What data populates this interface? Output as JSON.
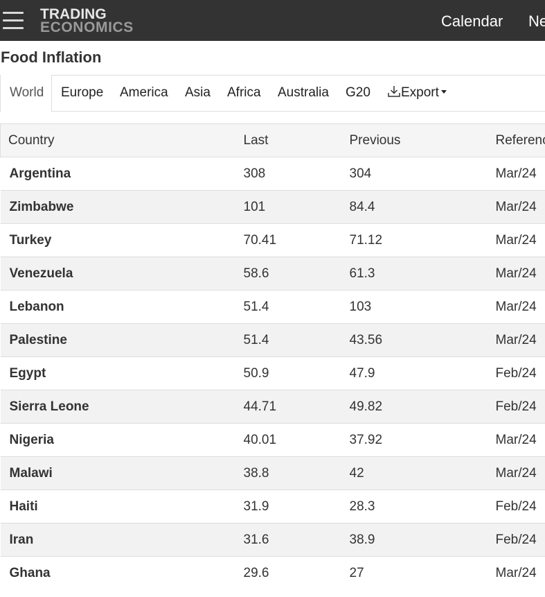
{
  "header": {
    "logo_line1": "TRADING",
    "logo_line2": "ECONOMICS",
    "nav": [
      "Calendar",
      "Ne"
    ]
  },
  "page_title": "Food Inflation",
  "tabs": [
    "World",
    "Europe",
    "America",
    "Asia",
    "Africa",
    "Australia",
    "G20"
  ],
  "active_tab": "World",
  "export_label": "Export",
  "table": {
    "columns": [
      "Country",
      "Last",
      "Previous",
      "Referenc"
    ],
    "rows": [
      [
        "Argentina",
        "308",
        "304",
        "Mar/24"
      ],
      [
        "Zimbabwe",
        "101",
        "84.4",
        "Mar/24"
      ],
      [
        "Turkey",
        "70.41",
        "71.12",
        "Mar/24"
      ],
      [
        "Venezuela",
        "58.6",
        "61.3",
        "Mar/24"
      ],
      [
        "Lebanon",
        "51.4",
        "103",
        "Mar/24"
      ],
      [
        "Palestine",
        "51.4",
        "43.56",
        "Mar/24"
      ],
      [
        "Egypt",
        "50.9",
        "47.9",
        "Feb/24"
      ],
      [
        "Sierra Leone",
        "44.71",
        "49.82",
        "Feb/24"
      ],
      [
        "Nigeria",
        "40.01",
        "37.92",
        "Mar/24"
      ],
      [
        "Malawi",
        "38.8",
        "42",
        "Mar/24"
      ],
      [
        "Haiti",
        "31.9",
        "28.3",
        "Feb/24"
      ],
      [
        "Iran",
        "31.6",
        "38.9",
        "Feb/24"
      ],
      [
        "Ghana",
        "29.6",
        "27",
        "Mar/24"
      ]
    ]
  },
  "colors": {
    "topbar": "#333333",
    "logo_primary": "#e6e6e6",
    "logo_secondary": "#9a9a9a",
    "row_alt": "#f2f2f2",
    "header_bg": "#f5f5f5"
  }
}
